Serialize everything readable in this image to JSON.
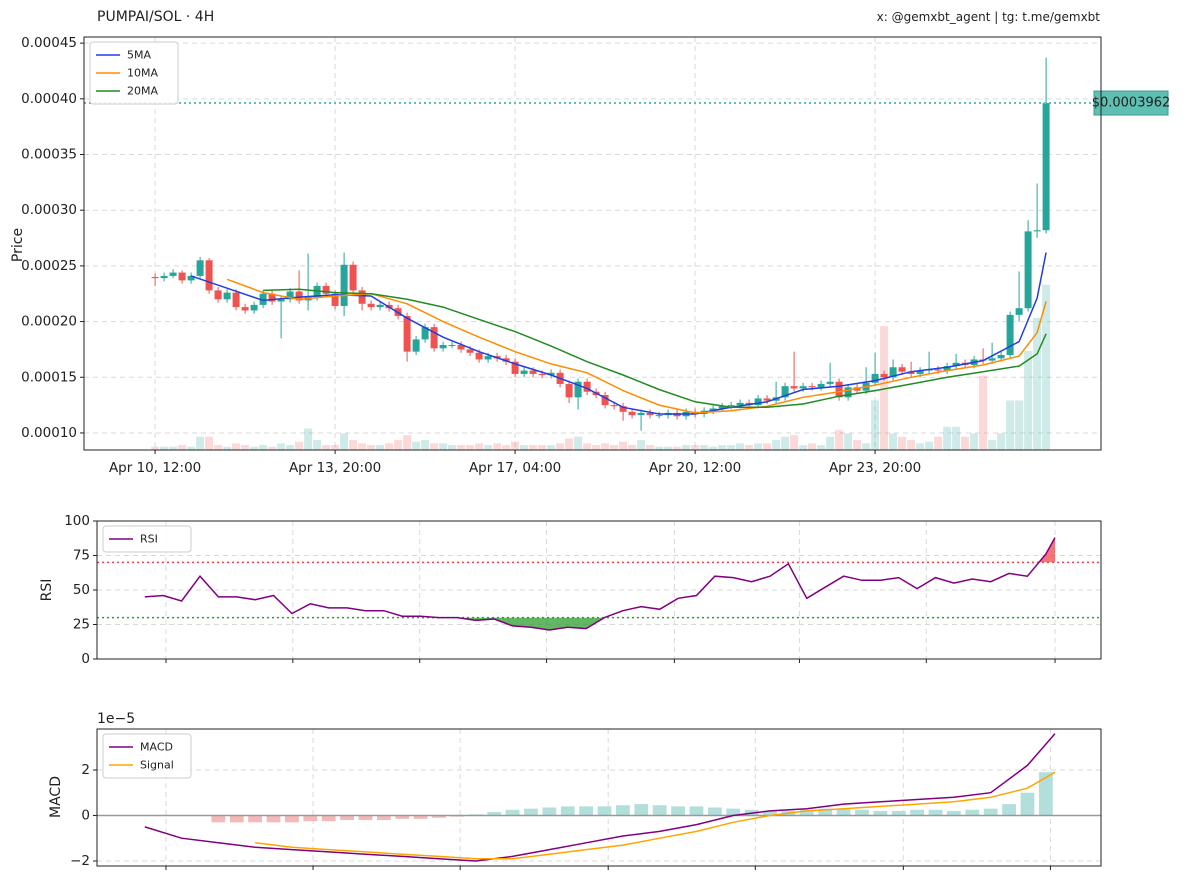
{
  "chart_data": [
    {
      "type": "candlestick",
      "title": "PUMPAI/SOL · 4H",
      "source": "x: @gemxbt_agent | tg: t.me/gemxbt",
      "ylabel": "Price",
      "xlim": [
        -7.9,
        105.1
      ],
      "xticks": [
        {
          "value": 0,
          "label": "Apr 10, 12:00"
        },
        {
          "value": 20,
          "label": "Apr 13, 20:00"
        },
        {
          "value": 40,
          "label": "Apr 17, 04:00"
        },
        {
          "value": 60,
          "label": "Apr 20, 12:00"
        },
        {
          "value": 80,
          "label": "Apr 23, 20:00"
        }
      ],
      "ylim": [
        8.47e-05,
        0.0004555
      ],
      "yticks": [
        {
          "value": 0.0001,
          "label": "0.00010"
        },
        0.00015,
        {
          "value": 0.0002,
          "label": "0.00020"
        },
        0.00025,
        {
          "value": 0.0003,
          "label": "0.00030"
        },
        0.00035,
        {
          "value": 0.0004,
          "label": "0.00040"
        },
        0.00045
      ],
      "grid": true,
      "legend": "upper left",
      "up_color": "#26a69a",
      "down_color": "#ef5350",
      "open": [
        0.00024,
        0.000239,
        0.000241,
        0.000244,
        0.000237,
        0.000241,
        0.000255,
        0.000228,
        0.00022,
        0.000226,
        0.000213,
        0.00021,
        0.000215,
        0.000225,
        0.000218,
        0.00022,
        0.000227,
        0.000219,
        0.000222,
        0.000232,
        0.000225,
        0.000214,
        0.000251,
        0.000228,
        0.000216,
        0.000213,
        0.000215,
        0.000212,
        0.000205,
        0.000173,
        0.000184,
        0.000195,
        0.000176,
        0.000179,
        0.000179,
        0.000175,
        0.000172,
        0.000166,
        0.000169,
        0.000167,
        0.000164,
        0.000153,
        0.000156,
        0.000153,
        0.000152,
        0.000154,
        0.000144,
        0.000132,
        0.000146,
        0.000137,
        0.000134,
        0.000125,
        0.000124,
        0.000119,
        0.000116,
        0.000118,
        0.000116,
        0.000116,
        0.000118,
        0.000115,
        0.000119,
        0.000117,
        0.00012,
        0.000122,
        0.000124,
        0.000125,
        0.000127,
        0.000125,
        0.000131,
        0.000129,
        0.000132,
        0.000142,
        0.00014,
        0.000142,
        0.000141,
        0.000144,
        0.000146,
        0.000132,
        0.000141,
        0.000138,
        0.000145,
        0.000153,
        0.00015,
        0.000159,
        0.000155,
        0.000153,
        0.000156,
        0.000157,
        0.000156,
        0.00016,
        0.000163,
        0.000161,
        0.000166,
        0.000165,
        0.000167,
        0.00017,
        0.000206,
        0.000212,
        0.000281,
        0.000282
      ],
      "high": [
        0.000243,
        0.000244,
        0.000247,
        0.000246,
        0.000244,
        0.000258,
        0.000257,
        0.000231,
        0.000229,
        0.000229,
        0.000216,
        0.000218,
        0.000228,
        0.000228,
        0.000223,
        0.00023,
        0.000246,
        0.000261,
        0.000235,
        0.000235,
        0.000228,
        0.000262,
        0.000254,
        0.000231,
        0.000219,
        0.000218,
        0.000218,
        0.000215,
        0.000208,
        0.000187,
        0.000198,
        0.000198,
        0.000182,
        0.000182,
        0.000182,
        0.000178,
        0.000175,
        0.000172,
        0.000172,
        0.00017,
        0.000167,
        0.000159,
        0.000159,
        0.000156,
        0.000157,
        0.000157,
        0.000147,
        0.000149,
        0.000149,
        0.00014,
        0.000137,
        0.000128,
        0.000127,
        0.000122,
        0.000121,
        0.000121,
        0.000119,
        0.000121,
        0.000121,
        0.000122,
        0.000122,
        0.000123,
        0.000125,
        0.000127,
        0.000128,
        0.00013,
        0.00013,
        0.000134,
        0.000134,
        0.000146,
        0.000145,
        0.000173,
        0.000145,
        0.000145,
        0.000147,
        0.000163,
        0.000149,
        0.000144,
        0.000144,
        0.000159,
        0.000172,
        0.000156,
        0.000166,
        0.000162,
        0.000164,
        0.000159,
        0.000173,
        0.00016,
        0.000163,
        0.000171,
        0.000166,
        0.000169,
        0.000176,
        0.000181,
        0.000173,
        0.000209,
        0.000245,
        0.000291,
        0.000324,
        0.000437
      ],
      "low": [
        0.000232,
        0.000236,
        0.000239,
        0.000234,
        0.000234,
        0.000239,
        0.000225,
        0.000217,
        0.000217,
        0.00021,
        0.000207,
        0.000207,
        0.000212,
        0.000215,
        0.000185,
        0.000217,
        0.000216,
        0.00021,
        0.000219,
        0.000222,
        0.000211,
        0.000205,
        0.000225,
        0.00021,
        0.00021,
        0.00021,
        0.000209,
        0.000202,
        0.000164,
        0.00017,
        0.000181,
        0.000173,
        0.000173,
        0.000176,
        0.000172,
        0.000169,
        0.000163,
        0.000163,
        0.000164,
        0.000161,
        0.00015,
        0.00015,
        0.00015,
        0.000149,
        0.000149,
        0.000141,
        0.000127,
        0.000121,
        0.000134,
        0.000131,
        0.000122,
        0.000121,
        0.000111,
        0.000113,
        0.000102,
        0.000113,
        0.000113,
        0.000113,
        0.000112,
        0.000112,
        0.000114,
        0.000114,
        0.000117,
        0.000119,
        0.000121,
        0.000122,
        0.000122,
        0.000122,
        0.000126,
        0.000126,
        0.000129,
        0.000137,
        0.000137,
        0.000138,
        0.000138,
        0.000141,
        0.000129,
        0.000129,
        0.000135,
        0.000135,
        0.000142,
        0.000147,
        0.000147,
        0.000152,
        0.00015,
        0.00015,
        0.000153,
        0.000153,
        0.000153,
        0.000157,
        0.000158,
        0.000158,
        0.000162,
        0.000162,
        0.000164,
        0.000167,
        0.0002,
        0.000209,
        0.000275,
        0.000279
      ],
      "close": [
        0.000239,
        0.000241,
        0.000244,
        0.000237,
        0.000241,
        0.000255,
        0.000228,
        0.00022,
        0.000226,
        0.000213,
        0.00021,
        0.000215,
        0.000225,
        0.000218,
        0.00022,
        0.000227,
        0.000219,
        0.000222,
        0.000232,
        0.000225,
        0.000214,
        0.000251,
        0.000228,
        0.000216,
        0.000213,
        0.000215,
        0.000212,
        0.000205,
        0.000173,
        0.000184,
        0.000195,
        0.000176,
        0.000179,
        0.000179,
        0.000175,
        0.000172,
        0.000166,
        0.000169,
        0.000167,
        0.000164,
        0.000153,
        0.000156,
        0.000153,
        0.000152,
        0.000154,
        0.000144,
        0.000132,
        0.000146,
        0.000137,
        0.000134,
        0.000125,
        0.000124,
        0.000119,
        0.000116,
        0.000118,
        0.000116,
        0.000116,
        0.000118,
        0.000115,
        0.000119,
        0.000117,
        0.00012,
        0.000122,
        0.000124,
        0.000125,
        0.000127,
        0.000125,
        0.000131,
        0.000129,
        0.000132,
        0.000142,
        0.00014,
        0.000142,
        0.000141,
        0.000144,
        0.000146,
        0.000132,
        0.000141,
        0.000138,
        0.000145,
        0.000153,
        0.00015,
        0.000159,
        0.000155,
        0.000153,
        0.000156,
        0.000157,
        0.000156,
        0.00016,
        0.000163,
        0.000161,
        0.000166,
        0.000165,
        0.000167,
        0.00017,
        0.000206,
        0.000212,
        0.000281,
        0.000282,
        0.0003962
      ],
      "volume": [
        2,
        2,
        2,
        3,
        2,
        8,
        8,
        3,
        2,
        4,
        3,
        2,
        3,
        2,
        4,
        3,
        5,
        13,
        6,
        3,
        3,
        10,
        6,
        4,
        3,
        3,
        4,
        6,
        9,
        5,
        6,
        4,
        4,
        3,
        3,
        3,
        4,
        3,
        4,
        3,
        5,
        3,
        3,
        3,
        3,
        4,
        7,
        8,
        4,
        3,
        4,
        3,
        5,
        3,
        6,
        3,
        2,
        2,
        2,
        3,
        3,
        3,
        2,
        3,
        3,
        4,
        3,
        4,
        4,
        6,
        8,
        9,
        3,
        4,
        3,
        8,
        12,
        10,
        6,
        4,
        30,
        75,
        10,
        8,
        6,
        4,
        5,
        8,
        14,
        14,
        8,
        10,
        45,
        6,
        10,
        30,
        30,
        60,
        80,
        100
      ],
      "series": [
        {
          "name": "5MA",
          "color": "#1f3fe0",
          "x": [
            4,
            8,
            12,
            16,
            20,
            24,
            28,
            32,
            36,
            40,
            44,
            48,
            52,
            56,
            60,
            64,
            68,
            72,
            76,
            80,
            84,
            88,
            92,
            96,
            98,
            99
          ],
          "values": [
            0.000241,
            0.00023,
            0.000219,
            0.000222,
            0.000224,
            0.000223,
            0.000203,
            0.000186,
            0.000173,
            0.000162,
            0.000152,
            0.00014,
            0.000123,
            0.000117,
            0.000117,
            0.000123,
            0.000128,
            0.000139,
            0.000142,
            0.000147,
            0.000155,
            0.000159,
            0.000165,
            0.000182,
            0.000221,
            0.000262
          ]
        },
        {
          "name": "10MA",
          "color": "#ff8c00",
          "x": [
            4,
            8,
            12,
            16,
            20,
            24,
            28,
            32,
            36,
            40,
            44,
            48,
            52,
            56,
            60,
            64,
            68,
            72,
            76,
            80,
            84,
            88,
            92,
            96,
            98,
            99
          ],
          "values": [
            null,
            0.000238,
            0.000226,
            0.00022,
            0.000223,
            0.000225,
            0.000216,
            0.0002,
            0.000186,
            0.000173,
            0.000162,
            0.000154,
            0.000138,
            0.000125,
            0.000118,
            0.00012,
            0.000124,
            0.000132,
            0.000137,
            0.000143,
            0.00015,
            0.000156,
            0.000161,
            0.000169,
            0.00019,
            0.000218
          ]
        },
        {
          "name": "20MA",
          "color": "#228b22",
          "x": [
            4,
            8,
            12,
            16,
            20,
            24,
            28,
            32,
            36,
            40,
            44,
            48,
            52,
            56,
            60,
            64,
            68,
            72,
            76,
            80,
            84,
            88,
            92,
            96,
            98,
            99
          ],
          "values": [
            null,
            null,
            0.000228,
            0.000229,
            0.000226,
            0.000225,
            0.00022,
            0.000213,
            0.000202,
            0.000191,
            0.000178,
            0.000164,
            0.000152,
            0.000139,
            0.000128,
            0.000123,
            0.000123,
            0.000126,
            0.000133,
            0.000138,
            0.000144,
            0.00015,
            0.000155,
            0.00016,
            0.000171,
            0.000189
          ]
        }
      ],
      "price_line": {
        "value": 0.0003962,
        "label": "$0.0003962",
        "color": "#5fbfb3"
      }
    },
    {
      "type": "line",
      "ylabel": "RSI",
      "xlim": [
        -5.2,
        104
      ],
      "xticks": [
        2.3,
        16.1,
        29.9,
        43.7,
        57.6,
        71.2,
        85,
        99
      ],
      "ylim": [
        0,
        100
      ],
      "yticks": [
        0,
        25,
        50,
        75,
        100
      ],
      "grid": true,
      "legend": "upper left",
      "overbought": 70,
      "oversold": 30,
      "overbought_color": "#f0454a",
      "oversold_color": "#2f9e2f",
      "series": [
        {
          "name": "RSI",
          "color": "#800080",
          "x": [
            0,
            2,
            4,
            6,
            8,
            10,
            12,
            14,
            16,
            18,
            20,
            22,
            24,
            26,
            28,
            30,
            32,
            34,
            36,
            38,
            40,
            42,
            44,
            46,
            48,
            50,
            52,
            54,
            56,
            58,
            60,
            62,
            64,
            66,
            68,
            70,
            72,
            74,
            76,
            78,
            80,
            82,
            84,
            86,
            88,
            90,
            92,
            94,
            96,
            98,
            99
          ],
          "values": [
            45,
            46,
            42,
            60,
            45,
            45,
            43,
            46,
            33,
            40,
            37,
            37,
            35,
            35,
            31,
            31,
            30,
            30,
            28,
            29,
            24,
            23,
            21,
            23,
            22,
            30,
            35,
            38,
            36,
            44,
            46,
            60,
            59,
            56,
            60,
            69,
            44,
            52,
            60,
            57,
            57,
            59,
            51,
            59,
            55,
            58,
            56,
            62,
            60,
            76,
            88
          ]
        }
      ]
    },
    {
      "type": "combo",
      "ylabel": "MACD",
      "offset_label": "1e−5",
      "xlim": [
        -5.2,
        104
      ],
      "xticks": [
        2.3,
        18.3,
        34.3,
        50.4,
        66.4,
        82.5,
        98.5
      ],
      "ylim": [
        -2.22,
        3.8
      ],
      "yticks": [
        {
          "value": -2,
          "label": "−2"
        },
        0,
        2
      ],
      "grid": true,
      "legend": "upper left",
      "series": [
        {
          "name": "MACD",
          "color": "#800080",
          "x": [
            0,
            4,
            8,
            12,
            16,
            20,
            24,
            28,
            32,
            36,
            40,
            44,
            48,
            52,
            56,
            60,
            64,
            68,
            72,
            76,
            80,
            84,
            88,
            92,
            96,
            99
          ],
          "values": [
            -0.5,
            -1.0,
            -1.2,
            -1.4,
            -1.5,
            -1.6,
            -1.7,
            -1.8,
            -1.9,
            -2.0,
            -1.8,
            -1.5,
            -1.2,
            -0.9,
            -0.7,
            -0.4,
            0.0,
            0.2,
            0.3,
            0.5,
            0.6,
            0.7,
            0.8,
            1.0,
            2.2,
            3.6
          ]
        },
        {
          "name": "Signal",
          "color": "#ffa500",
          "x": [
            0,
            4,
            8,
            12,
            16,
            20,
            24,
            28,
            32,
            36,
            40,
            44,
            48,
            52,
            56,
            60,
            64,
            68,
            72,
            76,
            80,
            84,
            88,
            92,
            96,
            99
          ],
          "values": [
            null,
            null,
            null,
            -1.2,
            -1.4,
            -1.5,
            -1.6,
            -1.7,
            -1.8,
            -1.9,
            -1.9,
            -1.7,
            -1.5,
            -1.3,
            -1.0,
            -0.7,
            -0.3,
            0.0,
            0.2,
            0.3,
            0.4,
            0.5,
            0.6,
            0.8,
            1.2,
            1.9
          ]
        }
      ],
      "histogram": {
        "positive_color": "#b2dfdb",
        "negative_color": "#f5b7b7",
        "x": [
          8,
          10,
          12,
          14,
          16,
          18,
          20,
          22,
          24,
          26,
          28,
          30,
          32,
          34,
          36,
          38,
          40,
          42,
          44,
          46,
          48,
          50,
          52,
          54,
          56,
          58,
          60,
          62,
          64,
          66,
          68,
          70,
          72,
          74,
          76,
          78,
          80,
          82,
          84,
          86,
          88,
          90,
          92,
          94,
          96,
          98
        ],
        "values": [
          -0.3,
          -0.3,
          -0.3,
          -0.3,
          -0.3,
          -0.25,
          -0.25,
          -0.2,
          -0.2,
          -0.2,
          -0.15,
          -0.15,
          -0.1,
          -0.05,
          0.05,
          0.15,
          0.25,
          0.3,
          0.35,
          0.4,
          0.4,
          0.4,
          0.45,
          0.5,
          0.45,
          0.4,
          0.4,
          0.35,
          0.3,
          0.25,
          0.2,
          0.2,
          0.25,
          0.3,
          0.3,
          0.25,
          0.2,
          0.2,
          0.25,
          0.25,
          0.2,
          0.25,
          0.3,
          0.5,
          1.0,
          1.9
        ]
      }
    }
  ]
}
